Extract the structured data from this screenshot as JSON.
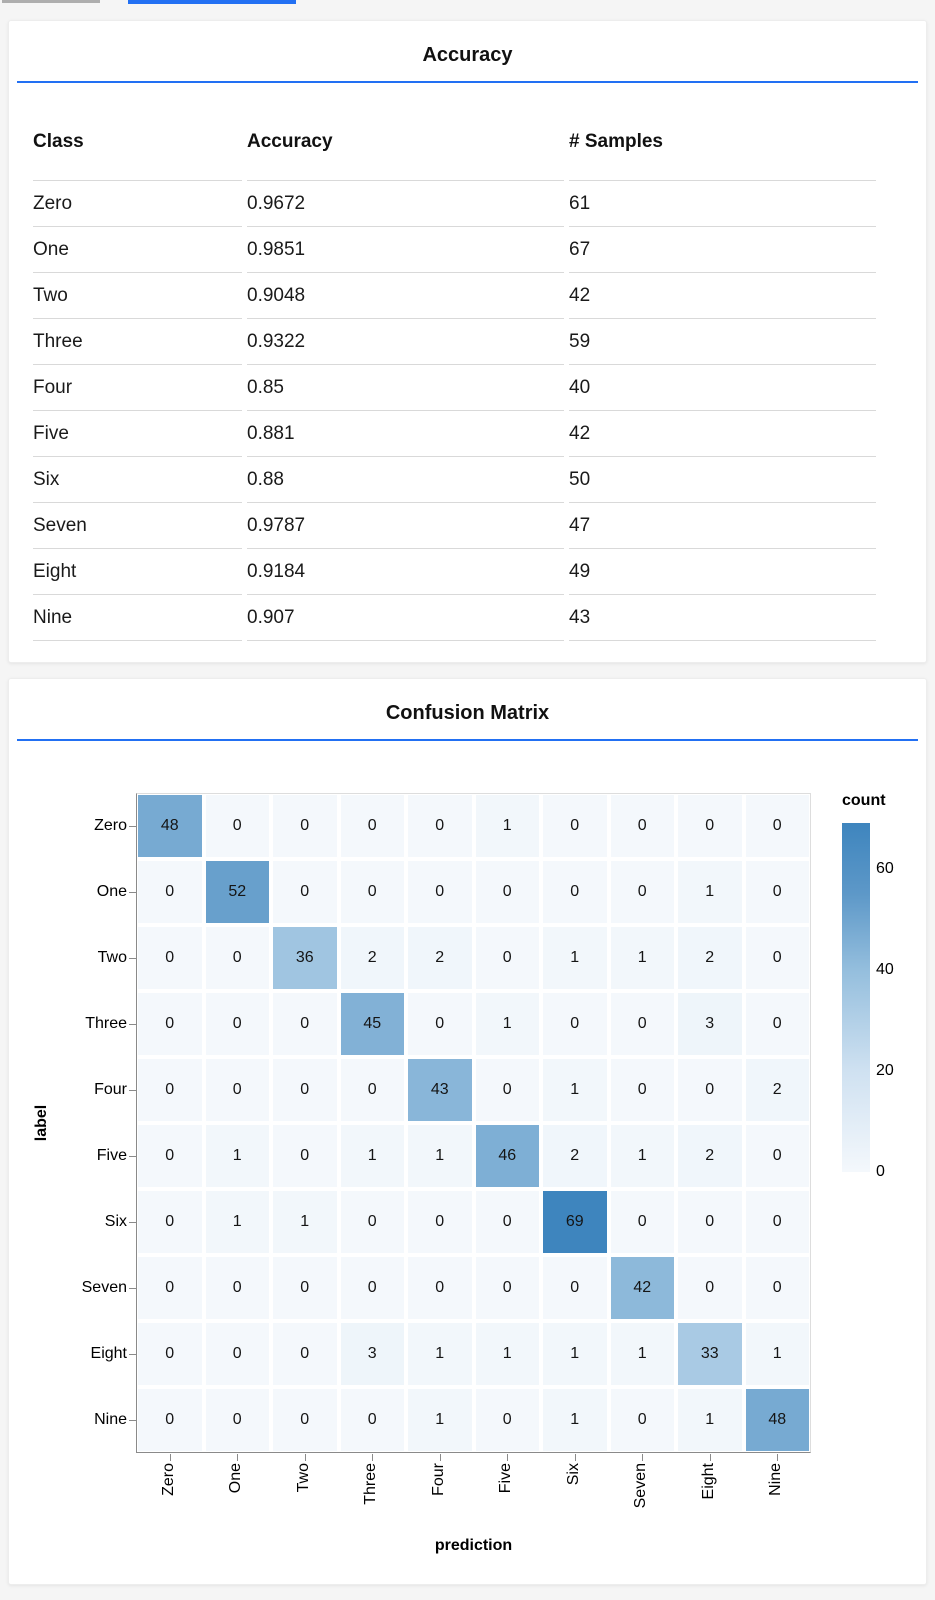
{
  "top_bars": {
    "gray_color": "#aeaeae",
    "blue_color": "#2270f3"
  },
  "accuracy_card": {
    "title": "Accuracy",
    "underline_color": "#2270f3",
    "table": {
      "columns": [
        "Class",
        "Accuracy",
        "# Samples"
      ],
      "rows": [
        [
          "Zero",
          "0.9672",
          "61"
        ],
        [
          "One",
          "0.9851",
          "67"
        ],
        [
          "Two",
          "0.9048",
          "42"
        ],
        [
          "Three",
          "0.9322",
          "59"
        ],
        [
          "Four",
          "0.85",
          "40"
        ],
        [
          "Five",
          "0.881",
          "42"
        ],
        [
          "Six",
          "0.88",
          "50"
        ],
        [
          "Seven",
          "0.9787",
          "47"
        ],
        [
          "Eight",
          "0.9184",
          "49"
        ],
        [
          "Nine",
          "0.907",
          "43"
        ]
      ]
    }
  },
  "confusion_card": {
    "title": "Confusion Matrix",
    "underline_color": "#2270f3"
  },
  "chart_data": {
    "type": "heatmap",
    "title": "Confusion Matrix",
    "xlabel": "prediction",
    "ylabel": "label",
    "categories": [
      "Zero",
      "One",
      "Two",
      "Three",
      "Four",
      "Five",
      "Six",
      "Seven",
      "Eight",
      "Nine"
    ],
    "matrix": [
      [
        48,
        0,
        0,
        0,
        0,
        1,
        0,
        0,
        0,
        0
      ],
      [
        0,
        52,
        0,
        0,
        0,
        0,
        0,
        0,
        1,
        0
      ],
      [
        0,
        0,
        36,
        2,
        2,
        0,
        1,
        1,
        2,
        0
      ],
      [
        0,
        0,
        0,
        45,
        0,
        1,
        0,
        0,
        3,
        0
      ],
      [
        0,
        0,
        0,
        0,
        43,
        0,
        1,
        0,
        0,
        2
      ],
      [
        0,
        1,
        0,
        1,
        1,
        46,
        2,
        1,
        2,
        0
      ],
      [
        0,
        1,
        1,
        0,
        0,
        0,
        69,
        0,
        0,
        0
      ],
      [
        0,
        0,
        0,
        0,
        0,
        0,
        0,
        42,
        0,
        0
      ],
      [
        0,
        0,
        0,
        3,
        1,
        1,
        1,
        1,
        33,
        1
      ],
      [
        0,
        0,
        0,
        0,
        1,
        0,
        1,
        0,
        1,
        48
      ]
    ],
    "legend": {
      "title": "count",
      "ticks": [
        60,
        40,
        20,
        0
      ],
      "domain": [
        0,
        69
      ]
    },
    "color_scale": {
      "stops": [
        [
          0,
          "#f4f8fc"
        ],
        [
          20,
          "#cfe1f1"
        ],
        [
          40,
          "#94bedd"
        ],
        [
          55,
          "#5d98c8"
        ],
        [
          69,
          "#3e85be"
        ]
      ]
    },
    "grid": true,
    "legend_position": "right"
  }
}
